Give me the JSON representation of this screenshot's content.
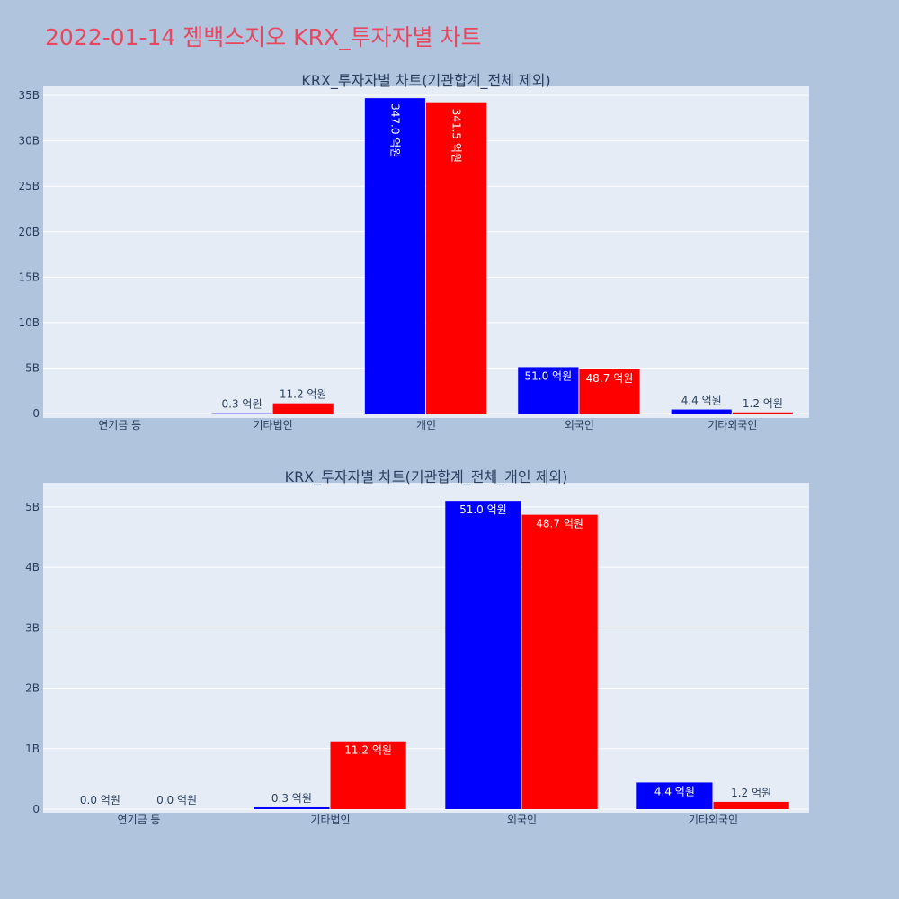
{
  "title": "2022-01-14 젬백스지오 KRX_투자자별 차트",
  "colors": {
    "buy": "#0000ff",
    "sell": "#ff0000",
    "page_bg": "#b0c4de",
    "plot_bg": "#e5ecf6",
    "title": "#e8485f"
  },
  "chart_data": [
    {
      "type": "bar",
      "title": "KRX_투자자별 차트(기관합계_전체 제외)",
      "categories": [
        "연기금 등",
        "기타법인",
        "개인",
        "외국인",
        "기타외국인"
      ],
      "ylim": [
        0,
        36
      ],
      "yticks": [
        0,
        5,
        10,
        15,
        20,
        25,
        30,
        35
      ],
      "ytick_labels": [
        "0",
        "5B",
        "10B",
        "15B",
        "20B",
        "25B",
        "30B",
        "35B"
      ],
      "grid": true,
      "series": [
        {
          "color": "#0000ff",
          "values": [
            0,
            0.03,
            34.7,
            5.1,
            0.44
          ],
          "labels": [
            "",
            "0.3 억원",
            "347.0 억원",
            "51.0 억원",
            "4.4 억원"
          ],
          "label_pos": [
            "",
            "outside",
            "inside-rot",
            "inside",
            "outside"
          ]
        },
        {
          "color": "#ff0000",
          "values": [
            0,
            1.12,
            34.15,
            4.87,
            0.12
          ],
          "labels": [
            "",
            "11.2 억원",
            "341.5 억원",
            "48.7 억원",
            "1.2 억원"
          ],
          "label_pos": [
            "",
            "outside",
            "inside-rot",
            "inside",
            "outside"
          ]
        }
      ]
    },
    {
      "type": "bar",
      "title": "KRX_투자자별 차트(기관합계_전체_개인 제외)",
      "categories": [
        "연기금 등",
        "기타법인",
        "외국인",
        "기타외국인"
      ],
      "ylim": [
        0,
        5.4
      ],
      "yticks": [
        0,
        1,
        2,
        3,
        4,
        5
      ],
      "ytick_labels": [
        "0",
        "1B",
        "2B",
        "3B",
        "4B",
        "5B"
      ],
      "grid": true,
      "series": [
        {
          "color": "#0000ff",
          "values": [
            0,
            0.03,
            5.1,
            0.44
          ],
          "labels": [
            "0.0 억원",
            "0.3 억원",
            "51.0 억원",
            "4.4 억원"
          ],
          "label_pos": [
            "outside",
            "outside",
            "inside",
            "inside"
          ]
        },
        {
          "color": "#ff0000",
          "values": [
            0,
            1.12,
            4.87,
            0.12
          ],
          "labels": [
            "0.0 억원",
            "11.2 억원",
            "48.7 억원",
            "1.2 억원"
          ],
          "label_pos": [
            "outside",
            "inside",
            "inside",
            "outside"
          ]
        }
      ]
    }
  ]
}
